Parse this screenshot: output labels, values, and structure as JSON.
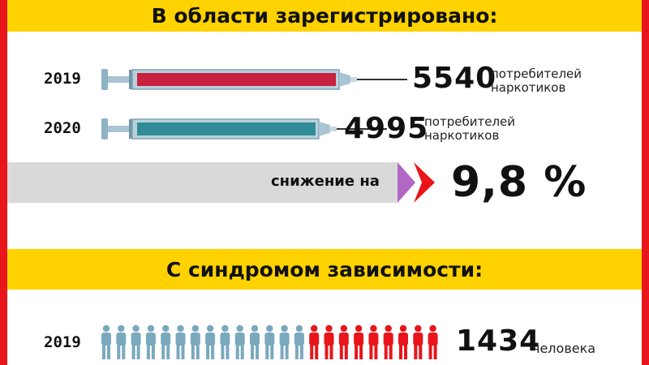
{
  "title_top": "В области зарегистрировано:",
  "title_mid": "С синдромом зависимости:",
  "colors": {
    "accent_red": "#e8161b",
    "band_yellow": "#ffd200",
    "syringe_2019": "#c8203f",
    "syringe_2020": "#2f8b95",
    "arrow_purple": "#b068c4",
    "person_blue": "#7aa9be",
    "person_red": "#e8161b"
  },
  "chart_data": [
    {
      "type": "bar",
      "title": "В области зарегистрировано:",
      "categories": [
        "2019",
        "2020"
      ],
      "values": [
        5540,
        4995
      ],
      "value_labels": [
        "5540",
        "4995"
      ],
      "unit": "потребителей наркотиков",
      "change_label": "снижение на",
      "change_value": "9,8 %"
    },
    {
      "type": "bar",
      "title": "С синдромом зависимости:",
      "categories": [
        "2019"
      ],
      "values": [
        1434
      ],
      "value_labels": [
        "1434"
      ],
      "unit": "человека",
      "icons_blue": 14,
      "icons_red": 9
    }
  ],
  "row2019": {
    "year": "2019",
    "value": "5540",
    "unit_line1": "потребителей",
    "unit_line2": "наркотиков"
  },
  "row2020": {
    "year": "2020",
    "value": "4995",
    "unit_line1": "потребителей",
    "unit_line2": "наркотиков"
  },
  "decline": {
    "label": "снижение на",
    "value": "9,8 %"
  },
  "syndrome": {
    "year": "2019",
    "value": "1434",
    "unit": "человека"
  }
}
